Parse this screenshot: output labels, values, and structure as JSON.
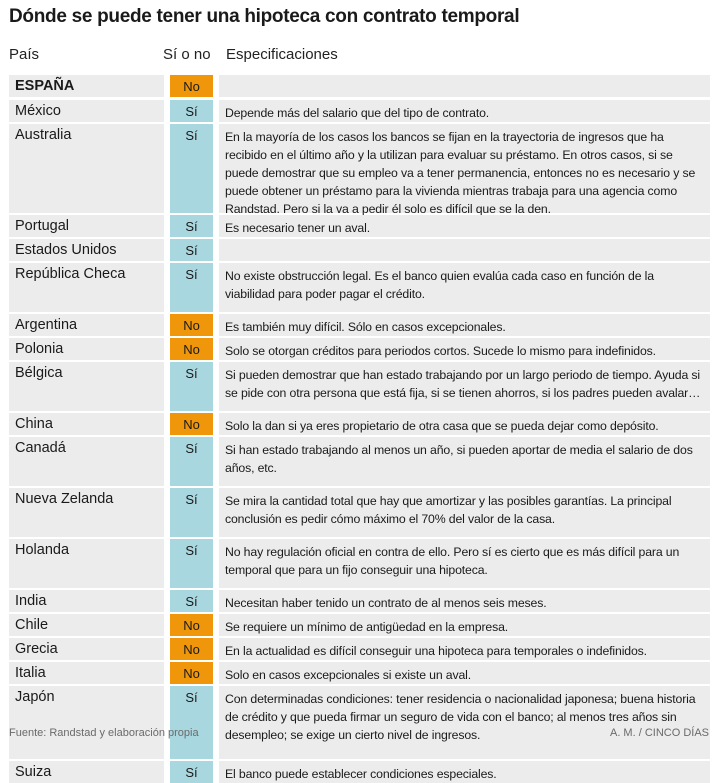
{
  "title": "Dónde se puede tener una hipoteca con contrato temporal",
  "headers": {
    "country": "País",
    "yesno": "Sí o no",
    "spec": "Especificaciones"
  },
  "colors": {
    "no": "#f0960a",
    "si": "#a9d7df",
    "row_bg": "#ececec"
  },
  "rows": [
    {
      "country": "ESPAÑA",
      "answer": "No",
      "spec": "",
      "bold": true
    },
    {
      "country": "México",
      "answer": "Sí",
      "spec": "Depende más del salario que del tipo de contrato."
    },
    {
      "country": "Australia",
      "answer": "Sí",
      "spec": "En la mayoría de los casos los bancos se fijan en la trayectoria de ingresos que ha recibido en el último año y la utilizan para evaluar su préstamo. En otros casos, si se puede demostrar que su empleo va a tener permanencia, entonces no es necesario y se puede obtener un préstamo para la vivienda mientras trabaja para una agencia como Randstad. Pero si la va a pedir él solo es difícil que se la den."
    },
    {
      "country": "Portugal",
      "answer": "Sí",
      "spec": "Es necesario tener un aval."
    },
    {
      "country": "Estados Unidos",
      "answer": "Sí",
      "spec": ""
    },
    {
      "country": "República Checa",
      "answer": "Sí",
      "spec": "No existe obstrucción legal. Es el banco quien evalúa cada caso en función de la viabilidad para poder pagar el crédito."
    },
    {
      "country": "Argentina",
      "answer": "No",
      "spec": "Es también muy difícil. Sólo en casos excepcionales."
    },
    {
      "country": "Polonia",
      "answer": "No",
      "spec": "Solo se otorgan créditos para periodos cortos. Sucede lo mismo para indefinidos."
    },
    {
      "country": "Bélgica",
      "answer": "Sí",
      "spec": "Si pueden demostrar que han estado trabajando por un largo periodo de tiempo. Ayuda si se pide con otra persona que está fija, si se tienen ahorros, si los padres pueden avalar…"
    },
    {
      "country": "China",
      "answer": "No",
      "spec": "Solo la dan si ya eres propietario de otra casa que se pueda dejar como depósito."
    },
    {
      "country": "Canadá",
      "answer": "Sí",
      "spec": "Si han estado trabajando al menos un año, si pueden aportar de media el salario de dos años, etc."
    },
    {
      "country": "Nueva Zelanda",
      "answer": "Sí",
      "spec": "Se mira la cantidad total que hay que amortizar y las posibles garantías. La principal conclusión es pedir cómo máximo el 70% del valor de la casa."
    },
    {
      "country": "Holanda",
      "answer": "Sí",
      "spec": "No hay regulación oficial en contra de ello. Pero sí es cierto que es más difícil para un temporal que para un fijo conseguir una hipoteca."
    },
    {
      "country": "India",
      "answer": "Sí",
      "spec": "Necesitan haber tenido un contrato de al menos seis meses."
    },
    {
      "country": "Chile",
      "answer": "No",
      "spec": "Se requiere un mínimo de antigüedad en la empresa."
    },
    {
      "country": "Grecia",
      "answer": "No",
      "spec": "En la actualidad es difícil conseguir una hipoteca para temporales o indefinidos."
    },
    {
      "country": "Italia",
      "answer": "No",
      "spec": "Solo en casos excepcionales si existe un aval."
    },
    {
      "country": "Japón",
      "answer": "Sí",
      "spec": "Con determinadas condiciones: tener residencia o nacionalidad japonesa; buena historia de crédito y que pueda firmar un seguro de vida con el banco; al menos tres años sin desempleo; se exige un cierto nivel de ingresos."
    },
    {
      "country": "Suiza",
      "answer": "Sí",
      "spec": "El banco puede establecer condiciones especiales."
    }
  ],
  "footer": {
    "source": "Fuente: Randstad y elaboración propia",
    "credit": "A. M. / CINCO DÍAS"
  }
}
